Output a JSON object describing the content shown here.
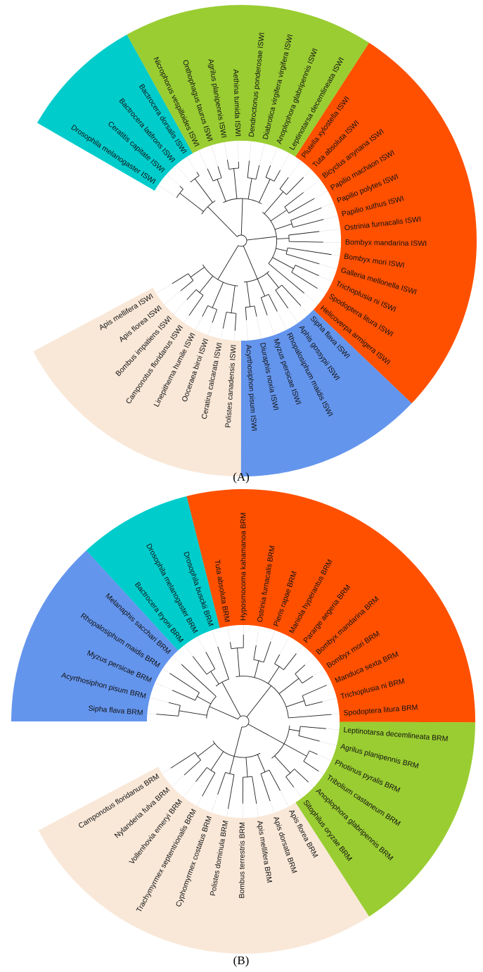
{
  "colors": {
    "red": "#ff5000",
    "green": "#9acd32",
    "teal": "#00cccc",
    "blue": "#6495ed",
    "beige": "#f9e8d8"
  },
  "panels": [
    {
      "id": "A",
      "caption": "(A)",
      "segments": [
        {
          "color": "teal",
          "leaves": [
            "Drosophila melanogaster ISWI",
            "Ceratitis capitate ISWI",
            "Bactrocera latifrons ISWI",
            "Bactrocera dorsalis ISWI"
          ]
        },
        {
          "color": "green",
          "leaves": [
            "Nicrophorus vespilloides ISWI",
            "Onthophagus taurus ISWI",
            "Agrilus planipennis ISWI",
            "Aethina tumida ISWI",
            "Dendroctonus ponderosae ISWI",
            "Diabrotica virgifera virgifera ISWI",
            "Anoplophora glabripennis ISWI",
            "Leptinotarsa decemlineata ISWI"
          ]
        },
        {
          "color": "red",
          "leaves": [
            "Plutella xylostella ISWI",
            "Tuta absoluta ISWI",
            "Bicyclus anynana ISWI",
            "Papilio machaon ISWI",
            "Papilio polytes ISWI",
            "Papilio xuthus ISWI",
            "Ostrinia furnacalis ISWI",
            "Bombyx mandarina ISWI",
            "Bombyx mori ISWI",
            "Galleria mellonella ISWI",
            "Trichoplusia ni ISWI",
            "Spodoptera litura ISWI",
            "Helicoverpa armigera ISWI"
          ]
        },
        {
          "color": "blue",
          "leaves": [
            "Sipha flava ISWI",
            "Aphis gossypii ISWI",
            "Rhopalosiphum maidis ISWI",
            "Myzus persicae ISWI",
            "Diuraphis noxia ISWI",
            "Acyrthosiphon pisum ISWI"
          ]
        },
        {
          "color": "beige",
          "leaves": [
            "Polistes canadensis ISWI",
            "Ceratina calcarata ISWI",
            "Ooceraea biroi ISWI",
            "Linepithema humile ISWI",
            "Camponotus floridanus ISWI",
            "Bombus impatiens ISWI",
            "Apis florea ISWI",
            "Apis mellifera ISWI"
          ]
        }
      ]
    },
    {
      "id": "B",
      "caption": "(B)",
      "segments": [
        {
          "color": "blue",
          "leaves": [
            "Sipha flava BRM",
            "Acyrthosiphon pisum BRM",
            "Myzus persicae BRM",
            "Rhopalosiphum maidis BRM",
            "Melanaphis sacchari BRM"
          ]
        },
        {
          "color": "teal",
          "leaves": [
            "Bactrocera tryoni BRM",
            "Drosophila melanogaster BRM",
            "Drosophila busckii BRM"
          ]
        },
        {
          "color": "red",
          "leaves": [
            "Tuta absoluta BRM",
            "Hyposmocoma kahamanoa BRM",
            "Ostrinia furnacalis BRM",
            "Pieris rapae BRM",
            "Maniola hyperantus BRM",
            "Pararge aegeria BRM",
            "Bombyx mandarina BRM",
            "Bombyx mori BRM",
            "Manduca sexta BRM",
            "Trichoplusia ni BRM",
            "Spodoptera litura BRM"
          ]
        },
        {
          "color": "green",
          "leaves": [
            "Leptinotarsa decemlineata BRM",
            "Agrilus planipennis BRM",
            "Photinus pyralis BRM",
            "Tribolium castaneum BRM",
            "Anoplophora glabripennis BRM",
            "Sitophilus oryzae BRM"
          ]
        },
        {
          "color": "beige",
          "leaves": [
            "Apis florea BRM",
            "Apis dorsata BRM",
            "Apis mellifera BRM",
            "Bombus terrestris BRM",
            "Polistes dominula BRM",
            "Cyphomyrmex costatus BRM",
            "Trachymyrmex septentrionalis BRM",
            "Vollenhovia emeryi BRM",
            "Nylanderia fulva BRM",
            "Camponotus floridanus BRM"
          ]
        }
      ]
    }
  ]
}
